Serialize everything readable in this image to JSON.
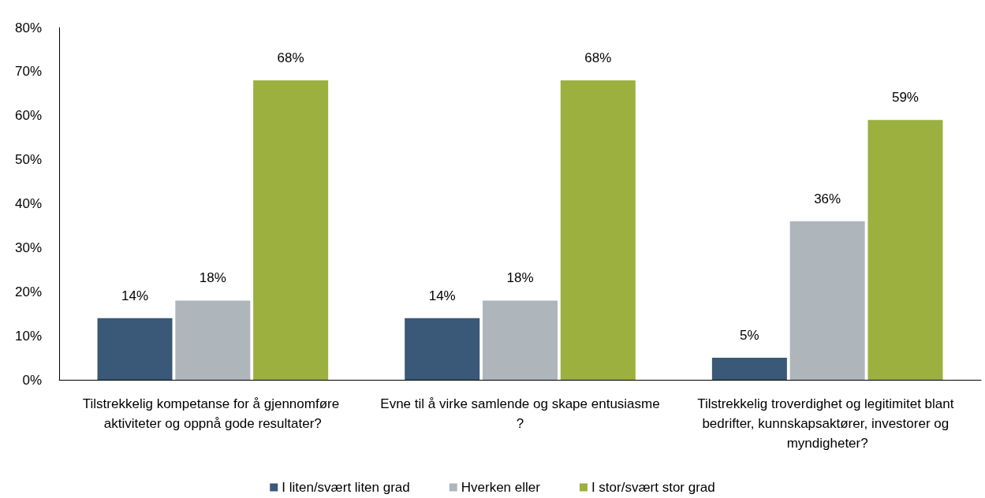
{
  "chart_data": {
    "type": "bar",
    "categories": [
      "Tilstrekkelig kompetanse for å gjennomføre aktiviteter og oppnå gode resultater?",
      "Evne til å virke samlende og skape entusiasme?",
      "Tilstrekkelig troverdighet og legitimitet blant bedrifter, kunnskapsaktører, investorer og myndigheter?"
    ],
    "series": [
      {
        "name": "I liten/svært liten grad",
        "color": "#3a5877",
        "values": [
          14,
          14,
          5
        ],
        "value_labels": [
          "14%",
          "14%",
          "5%"
        ]
      },
      {
        "name": "Hverken eller",
        "color": "#aeb5bb",
        "values": [
          18,
          18,
          36
        ],
        "value_labels": [
          "18%",
          "18%",
          "36%"
        ]
      },
      {
        "name": "I stor/svært stor grad",
        "color": "#9bb03e",
        "values": [
          68,
          68,
          59
        ],
        "value_labels": [
          "68%",
          "68%",
          "59%"
        ]
      }
    ],
    "ylim": [
      0,
      80
    ],
    "yticks": [
      {
        "value": 0,
        "label": "0%"
      },
      {
        "value": 10,
        "label": "10%"
      },
      {
        "value": 20,
        "label": "20%"
      },
      {
        "value": 30,
        "label": "30%"
      },
      {
        "value": 40,
        "label": "40%"
      },
      {
        "value": 50,
        "label": "50%"
      },
      {
        "value": 60,
        "label": "60%"
      },
      {
        "value": 70,
        "label": "70%"
      },
      {
        "value": 80,
        "label": "80%"
      }
    ],
    "grid": false,
    "legend": "bottom"
  }
}
